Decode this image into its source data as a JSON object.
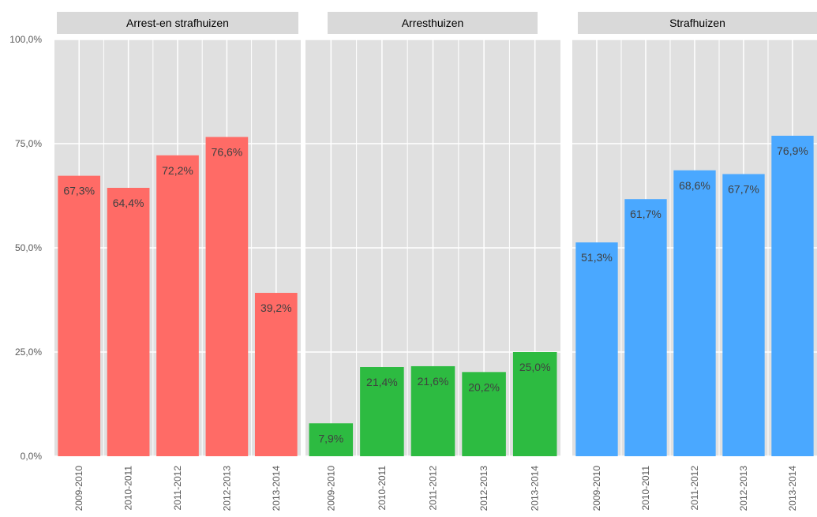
{
  "chart_data": {
    "type": "bar",
    "yticks": [
      "0,0%",
      "25,0%",
      "50,0%",
      "75,0%",
      "100,0%"
    ],
    "ylim": [
      0,
      100
    ],
    "grid": true,
    "categories": [
      "2009-2010",
      "2010-2011",
      "2011-2012",
      "2012-2013",
      "2013-2014"
    ],
    "panels": [
      {
        "title": "Arrest-en strafhuizen",
        "color": "#ff6b66",
        "values": [
          67.3,
          64.4,
          72.2,
          76.6,
          39.2
        ],
        "labels": [
          "67,3%",
          "64,4%",
          "72,2%",
          "76,6%",
          "39,2%"
        ]
      },
      {
        "title": "Arresthuizen",
        "color": "#2dbb41",
        "values": [
          7.9,
          21.4,
          21.6,
          20.2,
          25.0
        ],
        "labels": [
          "7,9%",
          "21,4%",
          "21,6%",
          "20,2%",
          "25,0%"
        ]
      },
      {
        "title": "Strafhuizen",
        "color": "#4aa8ff",
        "values": [
          51.3,
          61.7,
          68.6,
          67.7,
          76.9
        ],
        "labels": [
          "51,3%",
          "61,7%",
          "68,6%",
          "67,7%",
          "76,9%"
        ]
      }
    ]
  }
}
